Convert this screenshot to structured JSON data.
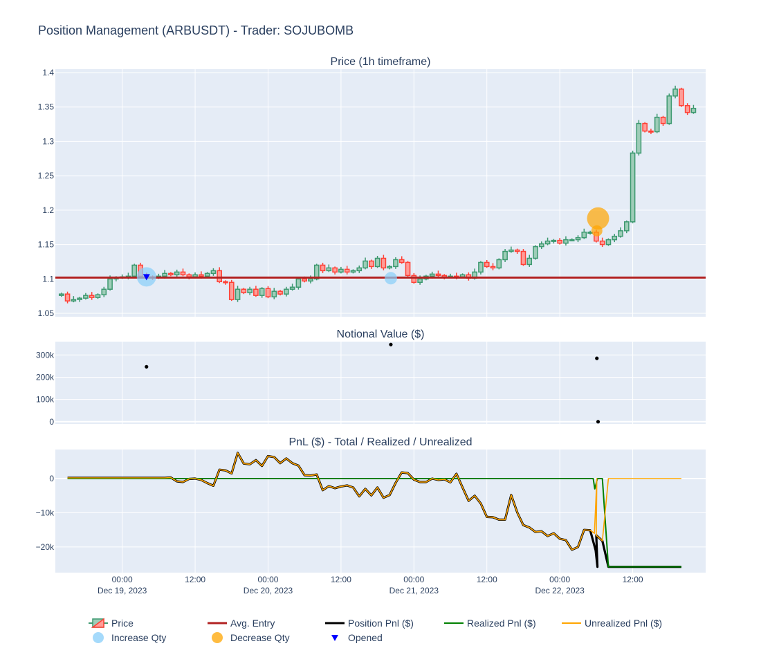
{
  "figure": {
    "title": "Position Management (ARBUSDT) - Trader: SOJUBOMB",
    "colors": {
      "plot_bg": "#e5ecf6",
      "grid": "#ffffff",
      "text": "#2a3f5f",
      "up": "#3d9970",
      "down": "#ff4136",
      "avg_entry": "#b22222",
      "position_pnl": "#000000",
      "realized_pnl": "#008000",
      "unrealized_pnl": "#ffa500",
      "increase_qty": "#87cefa",
      "decrease_qty": "#ffa500",
      "opened": "#0000ff"
    }
  },
  "chart_data": [
    {
      "id": "price",
      "type": "candlestick",
      "title": "Price (1h timeframe)",
      "x_start_hour": -10,
      "x_step_hours": 1,
      "ylim": [
        1.045,
        1.405
      ],
      "yticks": [
        1.05,
        1.1,
        1.15,
        1.2,
        1.25,
        1.3,
        1.35,
        1.4
      ],
      "ytick_labels": [
        "1.05",
        "1.1",
        "1.15",
        "1.2",
        "1.25",
        "1.3",
        "1.35",
        "1.4"
      ],
      "closes": [
        1.078,
        1.068,
        1.07,
        1.072,
        1.076,
        1.073,
        1.077,
        1.085,
        1.1,
        1.102,
        1.103,
        1.104,
        1.12,
        1.104,
        1.103,
        1.102,
        1.104,
        1.108,
        1.106,
        1.11,
        1.106,
        1.103,
        1.106,
        1.104,
        1.108,
        1.112,
        1.096,
        1.095,
        1.07,
        1.085,
        1.08,
        1.085,
        1.076,
        1.086,
        1.074,
        1.082,
        1.078,
        1.085,
        1.088,
        1.1,
        1.097,
        1.1,
        1.12,
        1.112,
        1.116,
        1.11,
        1.114,
        1.11,
        1.112,
        1.116,
        1.126,
        1.118,
        1.13,
        1.116,
        1.118,
        1.128,
        1.124,
        1.105,
        1.095,
        1.1,
        1.104,
        1.107,
        1.105,
        1.103,
        1.104,
        1.103,
        1.106,
        1.101,
        1.11,
        1.124,
        1.118,
        1.116,
        1.128,
        1.14,
        1.142,
        1.14,
        1.121,
        1.13,
        1.147,
        1.151,
        1.155,
        1.156,
        1.152,
        1.157,
        1.157,
        1.16,
        1.168,
        1.168,
        1.155,
        1.15,
        1.157,
        1.162,
        1.17,
        1.183,
        1.283,
        1.326,
        1.315,
        1.314,
        1.335,
        1.326,
        1.366,
        1.376,
        1.352,
        1.342,
        1.348
      ],
      "xticks": [
        {
          "hour": 0,
          "line1": "00:00",
          "line2": "Dec 19, 2023"
        },
        {
          "hour": 12,
          "line1": "12:00",
          "line2": ""
        },
        {
          "hour": 24,
          "line1": "00:00",
          "line2": "Dec 20, 2023"
        },
        {
          "hour": 36,
          "line1": "12:00",
          "line2": ""
        },
        {
          "hour": 48,
          "line1": "00:00",
          "line2": "Dec 21, 2023"
        },
        {
          "hour": 60,
          "line1": "12:00",
          "line2": ""
        },
        {
          "hour": 72,
          "line1": "00:00",
          "line2": "Dec 22, 2023"
        },
        {
          "hour": 84,
          "line1": "12:00",
          "line2": ""
        }
      ],
      "avg_entry": 1.102,
      "increase_markers": [
        {
          "hour": 4,
          "price": 1.103,
          "size": "large"
        },
        {
          "hour": 44.2,
          "price": 1.101,
          "size": "small"
        }
      ],
      "decrease_markers": [
        {
          "hour": 78.3,
          "price": 1.188,
          "size": "large"
        },
        {
          "hour": 78.1,
          "price": 1.17,
          "size": "small"
        }
      ],
      "opened_markers": [
        {
          "hour": 4,
          "price": 1.103
        }
      ]
    },
    {
      "id": "notional",
      "type": "scatter",
      "title": "Notional Value ($)",
      "ylim": [
        -10000,
        360000
      ],
      "yticks": [
        0,
        100000,
        200000,
        300000
      ],
      "ytick_labels": [
        "0",
        "100k",
        "200k",
        "300k"
      ],
      "points": [
        {
          "hour": 4,
          "value": 247000
        },
        {
          "hour": 44.2,
          "value": 347000
        },
        {
          "hour": 78.1,
          "value": 285000
        },
        {
          "hour": 78.3,
          "value": 0
        }
      ]
    },
    {
      "id": "pnl",
      "type": "line",
      "title": "PnL ($) - Total / Realized / Unrealized",
      "ylim": [
        -27500,
        8500
      ],
      "yticks": [
        0,
        -10000,
        -20000
      ],
      "ytick_labels": [
        "0",
        "−10k",
        "−20k"
      ],
      "x_start_hour": -9,
      "x_step_hours": 1,
      "unrealized_values": [
        200,
        200,
        200,
        200,
        200,
        200,
        200,
        200,
        200,
        200,
        200,
        200,
        200,
        200,
        200,
        200,
        200,
        300,
        -800,
        -1000,
        -100,
        0,
        -400,
        -1300,
        -2100,
        2600,
        2400,
        1500,
        7500,
        4400,
        4200,
        5400,
        3700,
        6600,
        6300,
        4500,
        5900,
        4500,
        3800,
        1000,
        900,
        1200,
        -3400,
        -2200,
        -2800,
        -2300,
        -2000,
        -2600,
        -5200,
        -3000,
        -4900,
        -2600,
        -5600,
        -4800,
        -1200,
        1800,
        1600,
        -300,
        -1000,
        -1000,
        0,
        -400,
        -200,
        -1100,
        1400,
        -2600,
        -6500,
        -5000,
        -7300,
        -11200,
        -11300,
        -12000,
        -12000,
        -4800,
        -9900,
        -13600,
        -14300,
        -15600,
        -15400,
        -16800,
        -16000,
        -17600,
        -18000,
        -20800,
        -20000,
        -15000,
        -15100,
        -16600,
        -18200,
        0,
        0,
        0,
        0,
        0,
        0,
        0,
        0,
        0,
        0,
        0,
        0,
        0
      ],
      "realized_values": [
        0,
        0,
        0,
        0,
        0,
        0,
        0,
        0,
        0,
        0,
        0,
        0,
        0,
        0,
        0,
        0,
        0,
        0,
        0,
        0,
        0,
        0,
        0,
        0,
        0,
        0,
        0,
        0,
        0,
        0,
        0,
        0,
        0,
        0,
        0,
        0,
        0,
        0,
        0,
        0,
        0,
        0,
        0,
        0,
        0,
        0,
        0,
        0,
        0,
        0,
        0,
        0,
        0,
        0,
        0,
        0,
        0,
        0,
        0,
        0,
        0,
        0,
        0,
        0,
        0,
        0,
        0,
        0,
        0,
        0,
        0,
        0,
        0,
        0,
        0,
        0,
        0,
        0,
        0,
        0,
        0,
        0,
        0,
        0,
        0,
        0,
        0,
        0,
        0,
        -25800,
        -25800,
        -25800,
        -25800,
        -25800,
        -25800,
        -25800,
        -25800,
        -25800,
        -25800,
        -25800,
        -25800,
        -25800
      ],
      "transition": {
        "start_hour": 77.5,
        "end_hour": 78.2,
        "realized_mid": -3000,
        "position_mid": -21000
      }
    }
  ],
  "legend": {
    "row1": [
      {
        "key": "price",
        "label": "Price"
      },
      {
        "key": "avg",
        "label": "Avg. Entry"
      },
      {
        "key": "pos",
        "label": "Position Pnl ($)"
      },
      {
        "key": "real",
        "label": "Realized Pnl ($)"
      },
      {
        "key": "unreal",
        "label": "Unrealized Pnl ($)"
      }
    ],
    "row2": [
      {
        "key": "inc",
        "label": "Increase Qty"
      },
      {
        "key": "dec",
        "label": "Decrease Qty"
      },
      {
        "key": "open",
        "label": "Opened"
      }
    ]
  }
}
